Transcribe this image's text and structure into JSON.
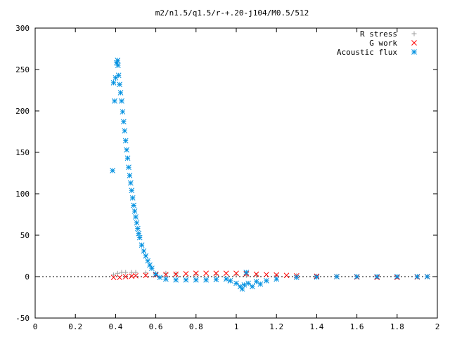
{
  "chart_data": {
    "type": "scatter",
    "title": "m2/n1.5/q1.5/r-+.20-j104/M0.5/512",
    "xlabel": "",
    "ylabel": "",
    "xlim": [
      0,
      2
    ],
    "ylim": [
      -50,
      300
    ],
    "x_ticks": [
      0,
      0.2,
      0.4,
      0.6,
      0.8,
      1,
      1.2,
      1.4,
      1.6,
      1.8,
      2
    ],
    "x_tick_labels": [
      "0",
      "0.2",
      "0.4",
      "0.6",
      "0.8",
      "1",
      "1.2",
      "1.4",
      "1.6",
      "1.8",
      "2"
    ],
    "y_ticks": [
      -50,
      0,
      50,
      100,
      150,
      200,
      250,
      300
    ],
    "y_tick_labels": [
      "-50",
      "0",
      "50",
      "100",
      "150",
      "200",
      "250",
      "300"
    ],
    "grid": false,
    "legend_position": "top-right",
    "series": [
      {
        "name": "R stress",
        "marker": "plus",
        "color": "#a0a0a0",
        "x": [
          0.39,
          0.41,
          0.43,
          0.45,
          0.48,
          0.5,
          0.55,
          0.6,
          0.65,
          0.7,
          0.8,
          0.9,
          1.0,
          1.05,
          1.1,
          1.2,
          1.3,
          1.4,
          1.5,
          1.6,
          1.7,
          1.8,
          1.9,
          1.95
        ],
        "y": [
          2,
          4,
          5,
          5,
          5,
          5,
          4.5,
          4,
          4,
          3.5,
          3,
          2.5,
          2,
          1.5,
          1.5,
          1,
          1,
          0.5,
          0.5,
          0.3,
          0.2,
          0.1,
          0.1,
          0
        ]
      },
      {
        "name": "G work",
        "marker": "cross",
        "color": "#ff0000",
        "x": [
          0.39,
          0.42,
          0.45,
          0.48,
          0.5,
          0.55,
          0.6,
          0.65,
          0.7,
          0.75,
          0.8,
          0.85,
          0.9,
          0.95,
          1.0,
          1.05,
          1.1,
          1.15,
          1.2,
          1.25,
          1.3,
          1.4,
          1.5,
          1.6,
          1.7,
          1.8,
          1.9,
          1.95
        ],
        "y": [
          -1,
          -1,
          0,
          0.5,
          1,
          1.5,
          2,
          2.5,
          3,
          3.5,
          4,
          4,
          4,
          4,
          4,
          3.5,
          3,
          2.5,
          2,
          1.5,
          1,
          0.5,
          0,
          -0.5,
          -1,
          -1,
          -0.5,
          0
        ]
      },
      {
        "name": "Acoustic flux",
        "marker": "star",
        "color": "#0090e0",
        "x": [
          0.385,
          0.39,
          0.395,
          0.4,
          0.405,
          0.41,
          0.412,
          0.415,
          0.42,
          0.425,
          0.43,
          0.435,
          0.44,
          0.445,
          0.45,
          0.455,
          0.46,
          0.465,
          0.47,
          0.475,
          0.48,
          0.485,
          0.49,
          0.495,
          0.5,
          0.505,
          0.51,
          0.515,
          0.52,
          0.53,
          0.54,
          0.55,
          0.56,
          0.57,
          0.58,
          0.6,
          0.62,
          0.65,
          0.7,
          0.75,
          0.8,
          0.85,
          0.9,
          0.95,
          0.97,
          1.0,
          1.02,
          1.03,
          1.04,
          1.05,
          1.06,
          1.08,
          1.1,
          1.12,
          1.15,
          1.2,
          1.3,
          1.4,
          1.5,
          1.6,
          1.7,
          1.8,
          1.9,
          1.95
        ],
        "y": [
          128,
          234,
          212,
          240,
          258,
          261,
          255,
          243,
          232,
          222,
          212,
          199,
          187,
          176,
          164,
          153,
          143,
          132,
          122,
          113,
          104,
          95,
          86,
          79,
          72,
          65,
          58,
          52,
          47,
          38,
          31,
          25,
          19,
          14,
          10,
          3,
          -1,
          -3,
          -4,
          -4,
          -4,
          -4,
          -3.5,
          -3,
          -5,
          -8,
          -12,
          -15,
          -10,
          5,
          -8,
          -12,
          -6,
          -9,
          -5,
          -3,
          -1,
          -0.5,
          0,
          0,
          0,
          0,
          0,
          0
        ]
      }
    ]
  }
}
